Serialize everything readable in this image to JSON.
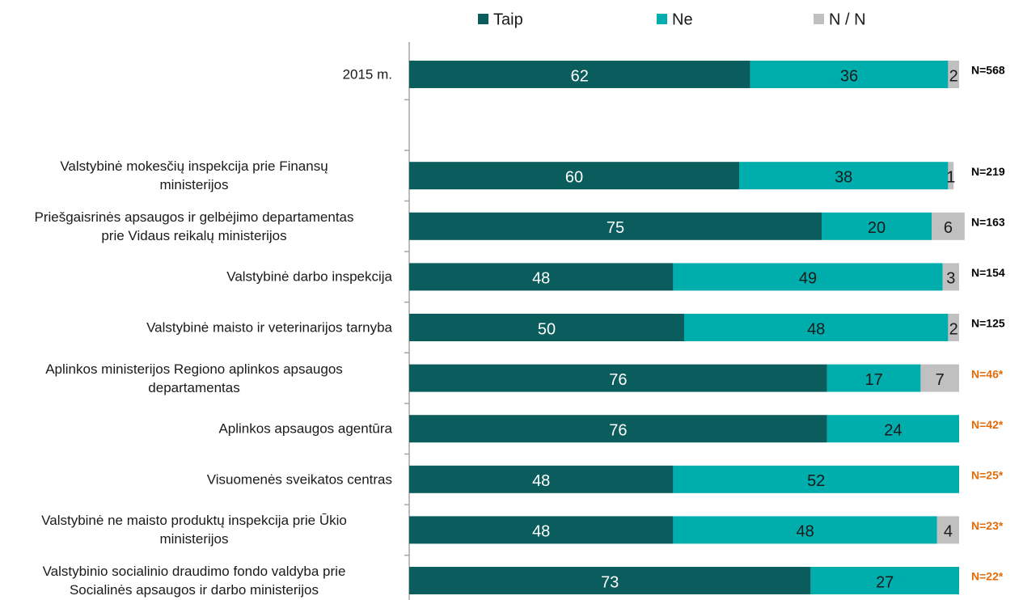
{
  "chart_data": {
    "type": "stacked_bar_horizontal",
    "categories": [
      "2015 m.",
      null,
      "Valstybinė mokesčių inspekcija prie Finansų\nministerijos",
      "Priešgaisrinės apsaugos ir gelbėjimo departamentas\nprie Vidaus reikalų ministerijos",
      "Valstybinė darbo inspekcija",
      "Valstybinė maisto ir veterinarijos tarnyba",
      "Aplinkos ministerijos Regiono aplinkos apsaugos\ndepartamentas",
      "Aplinkos apsaugos agentūra",
      "Visuomenės sveikatos centras",
      "Valstybinė ne maisto produktų inspekcija prie Ūkio\nministerijos",
      "Valstybinio socialinio draudimo fondo valdyba prie\nSocialinės apsaugos ir darbo ministerijos"
    ],
    "series": [
      {
        "name": "Taip",
        "color": "#0b5c5c",
        "label_color": "#ffffff",
        "values": [
          62,
          null,
          60,
          75,
          48,
          50,
          76,
          76,
          48,
          48,
          73
        ]
      },
      {
        "name": "Ne",
        "color": "#00adad",
        "label_color": "#1a1a1a",
        "values": [
          36,
          null,
          38,
          20,
          49,
          48,
          17,
          24,
          52,
          48,
          27
        ]
      },
      {
        "name": "N / N",
        "color": "#c0c0c0",
        "label_color": "#1a1a1a",
        "values": [
          2,
          null,
          1,
          6,
          3,
          2,
          7,
          null,
          null,
          4,
          null
        ]
      }
    ],
    "n_labels": [
      "N=568",
      null,
      "N=219",
      "N=163",
      "N=154",
      "N=125",
      "N=46*",
      "N=42*",
      "N=25*",
      "N=23*",
      "N=22*"
    ],
    "n_label_colors": [
      "#000000",
      null,
      "#000000",
      "#000000",
      "#000000",
      "#000000",
      "#e36c0a",
      "#e36c0a",
      "#e36c0a",
      "#e36c0a",
      "#e36c0a"
    ],
    "xlim": [
      0,
      100
    ]
  }
}
